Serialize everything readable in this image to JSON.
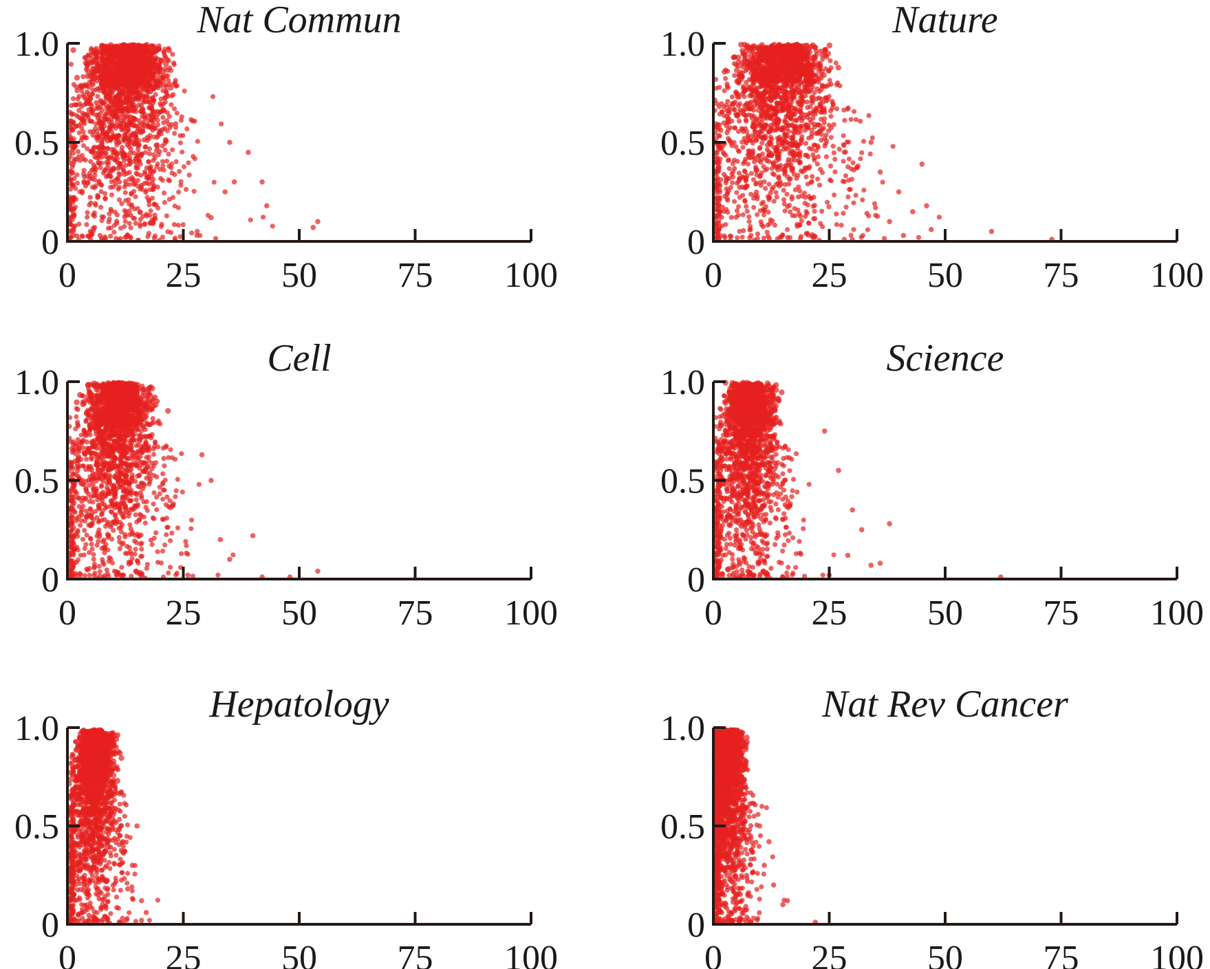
{
  "chart_data": [
    {
      "type": "scatter",
      "title": "Nat Commun",
      "xlim": [
        0,
        100
      ],
      "ylim": [
        0,
        1
      ],
      "xticks": [
        "0",
        "25",
        "50",
        "75",
        "100"
      ],
      "yticks": [
        "0",
        "0.5",
        "1.0"
      ],
      "cluster": {
        "peak_x": 13,
        "peak_y": 0.85
      },
      "outliers": [
        [
          42,
          0.3
        ],
        [
          43,
          0.18
        ],
        [
          39,
          0.45
        ],
        [
          54,
          0.1
        ],
        [
          53,
          0.07
        ],
        [
          36,
          0.3
        ],
        [
          35,
          0.5
        ],
        [
          31,
          0.12
        ],
        [
          28,
          0.05
        ],
        [
          34,
          0.25
        ]
      ],
      "color": "#e6211f"
    },
    {
      "type": "scatter",
      "title": "Nature",
      "xlim": [
        0,
        100
      ],
      "ylim": [
        0,
        1
      ],
      "xticks": [
        "0",
        "25",
        "50",
        "75",
        "100"
      ],
      "yticks": [
        "0",
        "0.5",
        "1.0"
      ],
      "cluster": {
        "peak_x": 15,
        "peak_y": 0.88
      },
      "outliers": [
        [
          45,
          0.39
        ],
        [
          46,
          0.18
        ],
        [
          47,
          0.06
        ],
        [
          60,
          0.05
        ],
        [
          73,
          0.01
        ],
        [
          40,
          0.25
        ],
        [
          43,
          0.15
        ],
        [
          36,
          0.35
        ],
        [
          41,
          0.03
        ],
        [
          34,
          0.5
        ],
        [
          38,
          0.1
        ]
      ],
      "color": "#e6211f"
    },
    {
      "type": "scatter",
      "title": "Cell",
      "xlim": [
        0,
        100
      ],
      "ylim": [
        0,
        1
      ],
      "xticks": [
        "0",
        "25",
        "50",
        "75",
        "100"
      ],
      "yticks": [
        "0",
        "0.5",
        "1.0"
      ],
      "cluster": {
        "peak_x": 11,
        "peak_y": 0.85
      },
      "outliers": [
        [
          40,
          0.22
        ],
        [
          54,
          0.04
        ],
        [
          42,
          0.01
        ],
        [
          48,
          0.01
        ],
        [
          31,
          0.5
        ],
        [
          29,
          0.63
        ],
        [
          35,
          0.1
        ],
        [
          33,
          0.2
        ],
        [
          26,
          0.02
        ]
      ],
      "color": "#e6211f"
    },
    {
      "type": "scatter",
      "title": "Science",
      "xlim": [
        0,
        100
      ],
      "ylim": [
        0,
        1
      ],
      "xticks": [
        "0",
        "25",
        "50",
        "75",
        "100"
      ],
      "yticks": [
        "0",
        "0.5",
        "1.0"
      ],
      "cluster": {
        "peak_x": 8,
        "peak_y": 0.86
      },
      "outliers": [
        [
          38,
          0.28
        ],
        [
          36,
          0.08
        ],
        [
          34,
          0.07
        ],
        [
          27,
          0.55
        ],
        [
          24,
          0.75
        ],
        [
          30,
          0.35
        ],
        [
          32,
          0.25
        ],
        [
          62,
          0.01
        ],
        [
          29,
          0.12
        ],
        [
          25,
          0.02
        ]
      ],
      "color": "#e6211f"
    },
    {
      "type": "scatter",
      "title": "Hepatology",
      "xlim": [
        0,
        100
      ],
      "ylim": [
        0,
        1
      ],
      "xticks": [
        "0",
        "25",
        "50",
        "75",
        "100"
      ],
      "yticks": [
        "0",
        "0.5",
        "1.0"
      ],
      "cluster": {
        "peak_x": 6,
        "peak_y": 0.8
      },
      "outliers": [
        [
          17,
          0.06
        ],
        [
          16,
          0.02
        ],
        [
          15,
          0.5
        ],
        [
          14,
          0.3
        ],
        [
          13,
          0.18
        ],
        [
          16,
          0.12
        ],
        [
          12,
          0.42
        ]
      ],
      "color": "#e6211f"
    },
    {
      "type": "scatter",
      "title": "Nat Rev Cancer",
      "xlim": [
        0,
        100
      ],
      "ylim": [
        0,
        1
      ],
      "xticks": [
        "0",
        "25",
        "50",
        "75",
        "100"
      ],
      "yticks": [
        "0",
        "0.5",
        "1.0"
      ],
      "cluster": {
        "peak_x": 3,
        "peak_y": 0.8
      },
      "outliers": [
        [
          22,
          0.01
        ],
        [
          16,
          0.12
        ],
        [
          15,
          0.1
        ],
        [
          12,
          0.42
        ],
        [
          11,
          0.3
        ],
        [
          13,
          0.2
        ],
        [
          10,
          0.5
        ]
      ],
      "color": "#e6211f"
    }
  ]
}
